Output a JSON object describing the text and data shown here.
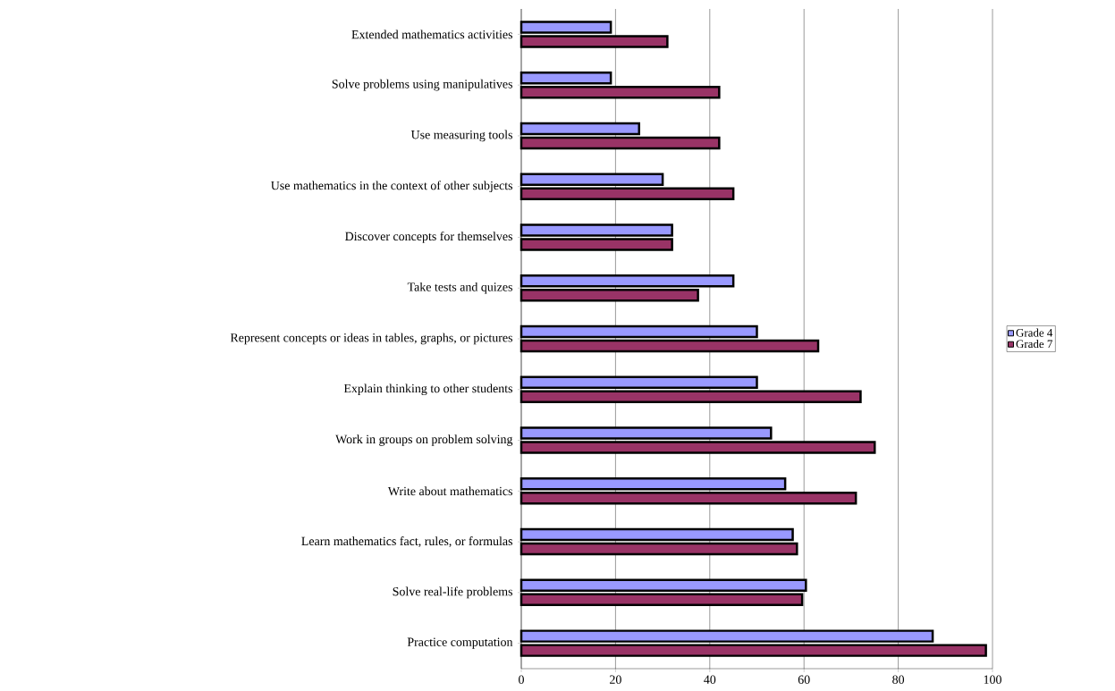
{
  "chart_data": {
    "type": "bar",
    "orientation": "horizontal",
    "categories": [
      "Extended mathematics activities",
      "Solve problems using manipulatives",
      "Use measuring tools",
      "Use mathematics in the context of other subjects",
      "Discover concepts for themselves",
      "Take tests and quizes",
      "Represent concepts or ideas in tables, graphs, or pictures",
      "Explain thinking to other students",
      "Work in groups on problem solving",
      "Write about mathematics",
      "Learn mathematics fact, rules, or formulas",
      "Solve real-life problems",
      "Practice computation"
    ],
    "series": [
      {
        "name": "Grade 4",
        "color": "#9999ff",
        "values": [
          19,
          19,
          25,
          30,
          32,
          45,
          50,
          50,
          53,
          56,
          57.6,
          60.4,
          87.3
        ]
      },
      {
        "name": "Grade 7",
        "color": "#993366",
        "values": [
          31,
          42,
          42,
          45,
          32,
          37.5,
          63,
          72,
          75,
          71,
          58.5,
          59.6,
          98.6
        ]
      }
    ],
    "xlim": [
      0,
      100
    ],
    "xticks": [
      0,
      20,
      40,
      60,
      80,
      100
    ],
    "grid": "x",
    "legend": "right"
  }
}
